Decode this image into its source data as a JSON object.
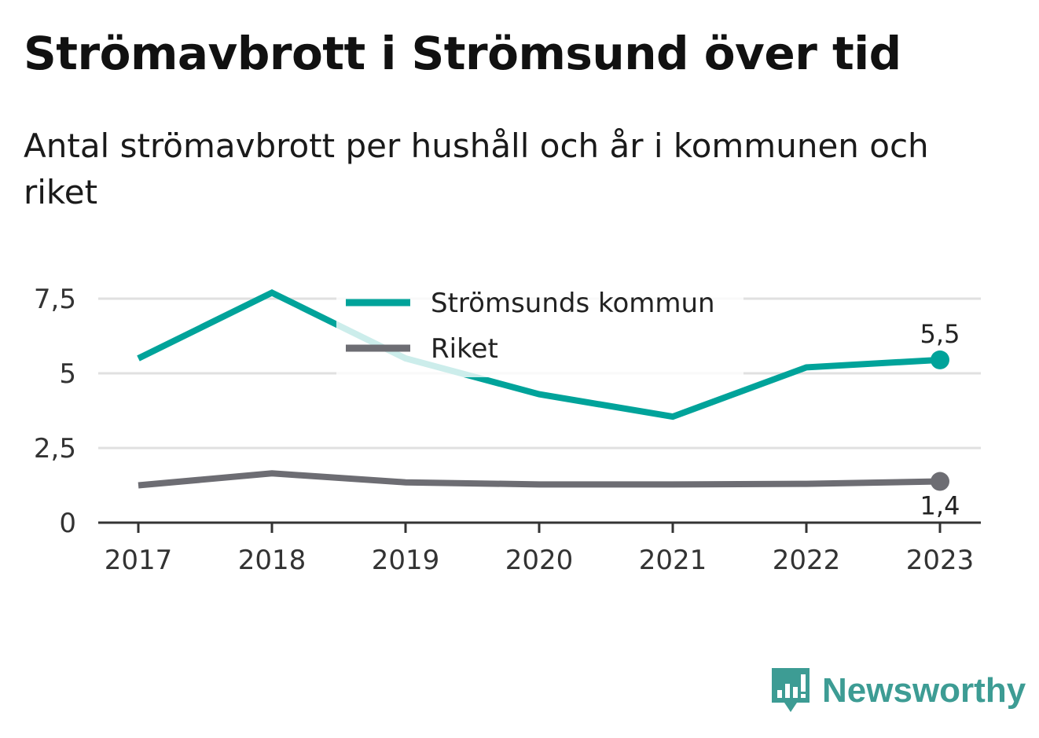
{
  "chart_data": {
    "type": "line",
    "title": "Strömavbrott i Strömsund över tid",
    "subtitle": "Antal strömavbrott per hushåll och år i kommunen och riket",
    "xlabel": "",
    "ylabel": "",
    "x": [
      "2017",
      "2018",
      "2019",
      "2020",
      "2021",
      "2022",
      "2023"
    ],
    "ylim": [
      0,
      7.5
    ],
    "yticks": [
      0,
      2.5,
      5,
      7.5
    ],
    "ytick_labels": [
      "0",
      "2,5",
      "5",
      "7,5"
    ],
    "grid": true,
    "legend_position": "top-center",
    "series": [
      {
        "name": "Strömsunds kommun",
        "values": [
          5.5,
          7.7,
          5.5,
          4.3,
          3.55,
          5.2,
          5.45
        ],
        "color": "#00a39a",
        "end_label": "5,5"
      },
      {
        "name": "Riket",
        "values": [
          1.25,
          1.65,
          1.35,
          1.28,
          1.28,
          1.3,
          1.38
        ],
        "color": "#6d6d73",
        "end_label": "1,4"
      }
    ]
  },
  "brand": {
    "name": "Newsworthy",
    "icon": "newsworthy-logo-icon",
    "color": "#3d9c94"
  }
}
